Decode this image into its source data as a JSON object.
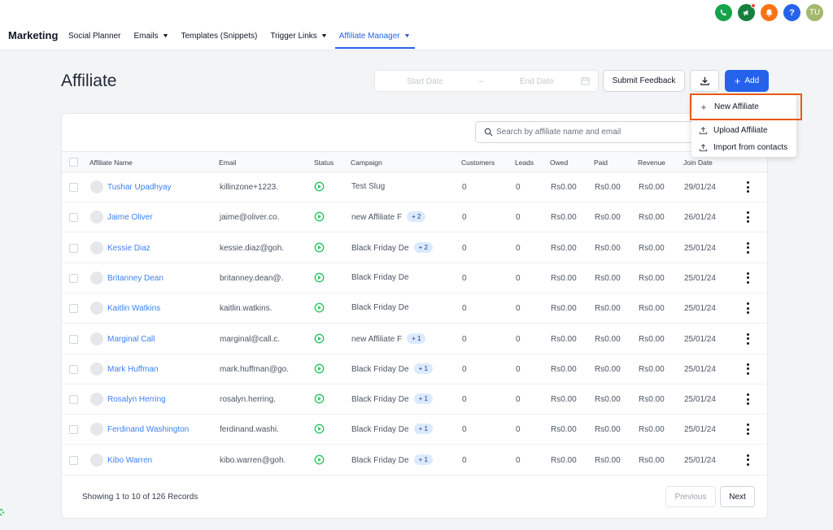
{
  "header": {
    "brand": "Marketing",
    "nav": [
      {
        "label": "Social Planner",
        "has_dropdown": false,
        "active": false
      },
      {
        "label": "Emails",
        "has_dropdown": true,
        "active": false
      },
      {
        "label": "Templates (Snippets)",
        "has_dropdown": false,
        "active": false
      },
      {
        "label": "Trigger Links",
        "has_dropdown": true,
        "active": false
      },
      {
        "label": "Affiliate Manager",
        "has_dropdown": true,
        "active": true
      }
    ],
    "icons": [
      {
        "name": "phone-icon",
        "color": "#16a34a"
      },
      {
        "name": "megaphone-icon",
        "color": "#15803d"
      },
      {
        "name": "bell-icon",
        "color": "#f97316"
      },
      {
        "name": "help-icon",
        "color": "#2563eb"
      },
      {
        "name": "user-avatar",
        "color": "#a3b86c",
        "initials": "TU"
      }
    ]
  },
  "page": {
    "title": "Affiliate",
    "start_date_placeholder": "Start Date",
    "end_date_placeholder": "End Date",
    "submit_feedback": "Submit Feedback",
    "add_label": "Add"
  },
  "add_menu": {
    "items": [
      "New Affiliate",
      "Upload Affiliate",
      "Import from contacts"
    ],
    "highlight_color": "#ea580c"
  },
  "table": {
    "search_placeholder": "Search by affiliate name and email",
    "columns": [
      "Affiliate Name",
      "Email",
      "Status",
      "Campaign",
      "Customers",
      "Leads",
      "Owed",
      "Paid",
      "Revenue",
      "Join Date"
    ],
    "rows": [
      {
        "name": "Tushar Upadhyay",
        "email": "killinzone+1223.",
        "campaign": "Test Slug",
        "extra": "",
        "customers": "0",
        "leads": "0",
        "owed": "Rs0.00",
        "paid": "Rs0.00",
        "revenue": "Rs0.00",
        "join_date": "29/01/24"
      },
      {
        "name": "Jaime Oliver",
        "email": "jaime@oliver.co.",
        "campaign": "new Affiliate F",
        "extra": "+ 2",
        "customers": "0",
        "leads": "0",
        "owed": "Rs0.00",
        "paid": "Rs0.00",
        "revenue": "Rs0.00",
        "join_date": "26/01/24"
      },
      {
        "name": "Kessie Diaz",
        "email": "kessie.diaz@goh.",
        "campaign": "Black Friday De",
        "extra": "+ 2",
        "customers": "0",
        "leads": "0",
        "owed": "Rs0.00",
        "paid": "Rs0.00",
        "revenue": "Rs0.00",
        "join_date": "25/01/24"
      },
      {
        "name": "Britanney Dean",
        "email": "britanney.dean@.",
        "campaign": "Black Friday De",
        "extra": "",
        "customers": "0",
        "leads": "0",
        "owed": "Rs0.00",
        "paid": "Rs0.00",
        "revenue": "Rs0.00",
        "join_date": "25/01/24"
      },
      {
        "name": "Kaitlin Watkins",
        "email": "kaitlin.watkins.",
        "campaign": "Black Friday De",
        "extra": "",
        "customers": "0",
        "leads": "0",
        "owed": "Rs0.00",
        "paid": "Rs0.00",
        "revenue": "Rs0.00",
        "join_date": "25/01/24"
      },
      {
        "name": "Marginal Call",
        "email": "marginal@call.c.",
        "campaign": "new Affiliate F",
        "extra": "+ 1",
        "customers": "0",
        "leads": "0",
        "owed": "Rs0.00",
        "paid": "Rs0.00",
        "revenue": "Rs0.00",
        "join_date": "25/01/24"
      },
      {
        "name": "Mark Huffman",
        "email": "mark.huffman@go.",
        "campaign": "Black Friday De",
        "extra": "+ 1",
        "customers": "0",
        "leads": "0",
        "owed": "Rs0.00",
        "paid": "Rs0.00",
        "revenue": "Rs0.00",
        "join_date": "25/01/24"
      },
      {
        "name": "Rosalyn Herring",
        "email": "rosalyn.herring.",
        "campaign": "Black Friday De",
        "extra": "+ 1",
        "customers": "0",
        "leads": "0",
        "owed": "Rs0.00",
        "paid": "Rs0.00",
        "revenue": "Rs0.00",
        "join_date": "25/01/24"
      },
      {
        "name": "Ferdinand Washington",
        "email": "ferdinand.washi.",
        "campaign": "Black Friday De",
        "extra": "+ 1",
        "customers": "0",
        "leads": "0",
        "owed": "Rs0.00",
        "paid": "Rs0.00",
        "revenue": "Rs0.00",
        "join_date": "25/01/24"
      },
      {
        "name": "Kibo Warren",
        "email": "kibo.warren@goh.",
        "campaign": "Black Friday De",
        "extra": "+ 1",
        "customers": "0",
        "leads": "0",
        "owed": "Rs0.00",
        "paid": "Rs0.00",
        "revenue": "Rs0.00",
        "join_date": "25/01/24"
      }
    ],
    "status_color": "#22c55e"
  },
  "footer": {
    "records_text": "Showing 1 to 10 of 126 Records",
    "previous": "Previous",
    "next": "Next"
  }
}
